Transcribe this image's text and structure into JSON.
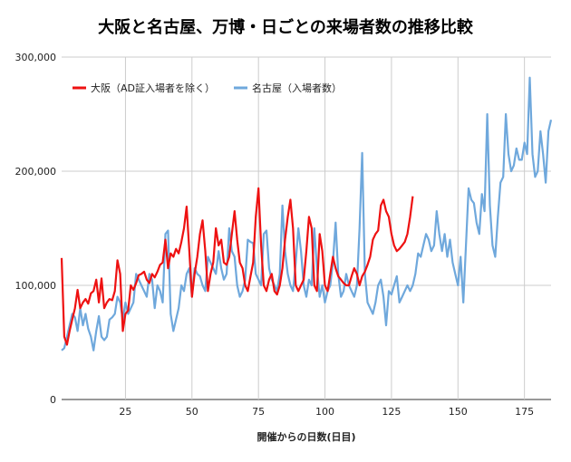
{
  "chart_data": {
    "type": "line",
    "title": "大阪と名古屋、万博・日ごとの来場者数の推移比較",
    "xlabel": "開催からの日数(日目)",
    "ylabel": "",
    "xlim": [
      1,
      185
    ],
    "ylim": [
      0,
      300000
    ],
    "x_ticks": [
      25,
      50,
      75,
      100,
      125,
      150,
      175
    ],
    "y_ticks": [
      0,
      100000,
      200000,
      300000
    ],
    "y_tick_labels": [
      "0",
      "100,000",
      "200,000",
      "300,000"
    ],
    "grid": true,
    "legend_position": "top-left",
    "series": [
      {
        "name": "大阪（AD証入場者を除く）",
        "color": "#ee1111",
        "values": [
          124000,
          55000,
          48000,
          60000,
          70000,
          80000,
          96000,
          80000,
          85000,
          88000,
          84000,
          93000,
          95000,
          105000,
          85000,
          106000,
          80000,
          85000,
          88000,
          87000,
          95000,
          122000,
          110000,
          60000,
          75000,
          78000,
          100000,
          96000,
          102000,
          109000,
          110000,
          112000,
          105000,
          102000,
          110000,
          107000,
          112000,
          118000,
          120000,
          140000,
          115000,
          128000,
          125000,
          132000,
          128000,
          138000,
          150000,
          169000,
          130000,
          90000,
          110000,
          125000,
          145000,
          157000,
          130000,
          95000,
          110000,
          120000,
          150000,
          135000,
          140000,
          120000,
          118000,
          125000,
          145000,
          165000,
          140000,
          120000,
          115000,
          100000,
          95000,
          108000,
          120000,
          160000,
          185000,
          135000,
          100000,
          95000,
          105000,
          110000,
          95000,
          92000,
          100000,
          115000,
          140000,
          160000,
          175000,
          150000,
          100000,
          95000,
          100000,
          105000,
          130000,
          160000,
          150000,
          100000,
          95000,
          145000,
          130000,
          100000,
          95000,
          110000,
          125000,
          115000,
          108000,
          105000,
          102000,
          100000,
          100000,
          108000,
          115000,
          110000,
          100000,
          108000,
          112000,
          118000,
          125000,
          140000,
          145000,
          148000,
          170000,
          175000,
          165000,
          160000,
          145000,
          135000,
          130000,
          132000,
          135000,
          138000,
          145000,
          160000,
          178000
        ]
      },
      {
        "name": "名古屋（入場者数）",
        "color": "#6fa8dc",
        "values": [
          43000,
          45000,
          55000,
          65000,
          75000,
          72000,
          60000,
          80000,
          65000,
          75000,
          62000,
          55000,
          43000,
          60000,
          73000,
          55000,
          52000,
          55000,
          70000,
          72000,
          75000,
          90000,
          85000,
          70000,
          85000,
          75000,
          80000,
          85000,
          110000,
          105000,
          100000,
          95000,
          90000,
          110000,
          105000,
          80000,
          100000,
          95000,
          85000,
          145000,
          148000,
          75000,
          60000,
          70000,
          80000,
          100000,
          95000,
          110000,
          115000,
          90000,
          115000,
          110000,
          108000,
          100000,
          95000,
          125000,
          120000,
          115000,
          110000,
          130000,
          115000,
          105000,
          110000,
          150000,
          130000,
          125000,
          100000,
          90000,
          95000,
          105000,
          140000,
          138000,
          137000,
          110000,
          105000,
          100000,
          145000,
          148000,
          115000,
          105000,
          100000,
          95000,
          110000,
          170000,
          130000,
          110000,
          100000,
          95000,
          120000,
          150000,
          130000,
          100000,
          90000,
          105000,
          100000,
          150000,
          115000,
          90000,
          100000,
          85000,
          95000,
          100000,
          120000,
          155000,
          110000,
          90000,
          95000,
          110000,
          100000,
          95000,
          90000,
          100000,
          150000,
          216000,
          110000,
          85000,
          80000,
          75000,
          85000,
          100000,
          105000,
          90000,
          65000,
          95000,
          92000,
          100000,
          108000,
          85000,
          90000,
          95000,
          100000,
          95000,
          100000,
          110000,
          128000,
          125000,
          135000,
          145000,
          140000,
          130000,
          135000,
          165000,
          145000,
          130000,
          145000,
          125000,
          140000,
          120000,
          110000,
          100000,
          125000,
          85000,
          135000,
          185000,
          175000,
          172000,
          155000,
          145000,
          180000,
          165000,
          250000,
          170000,
          135000,
          125000,
          160000,
          190000,
          195000,
          250000,
          215000,
          200000,
          205000,
          220000,
          210000,
          210000,
          225000,
          215000,
          282000,
          215000,
          195000,
          200000,
          235000,
          215000,
          190000,
          235000,
          245000
        ]
      }
    ]
  }
}
